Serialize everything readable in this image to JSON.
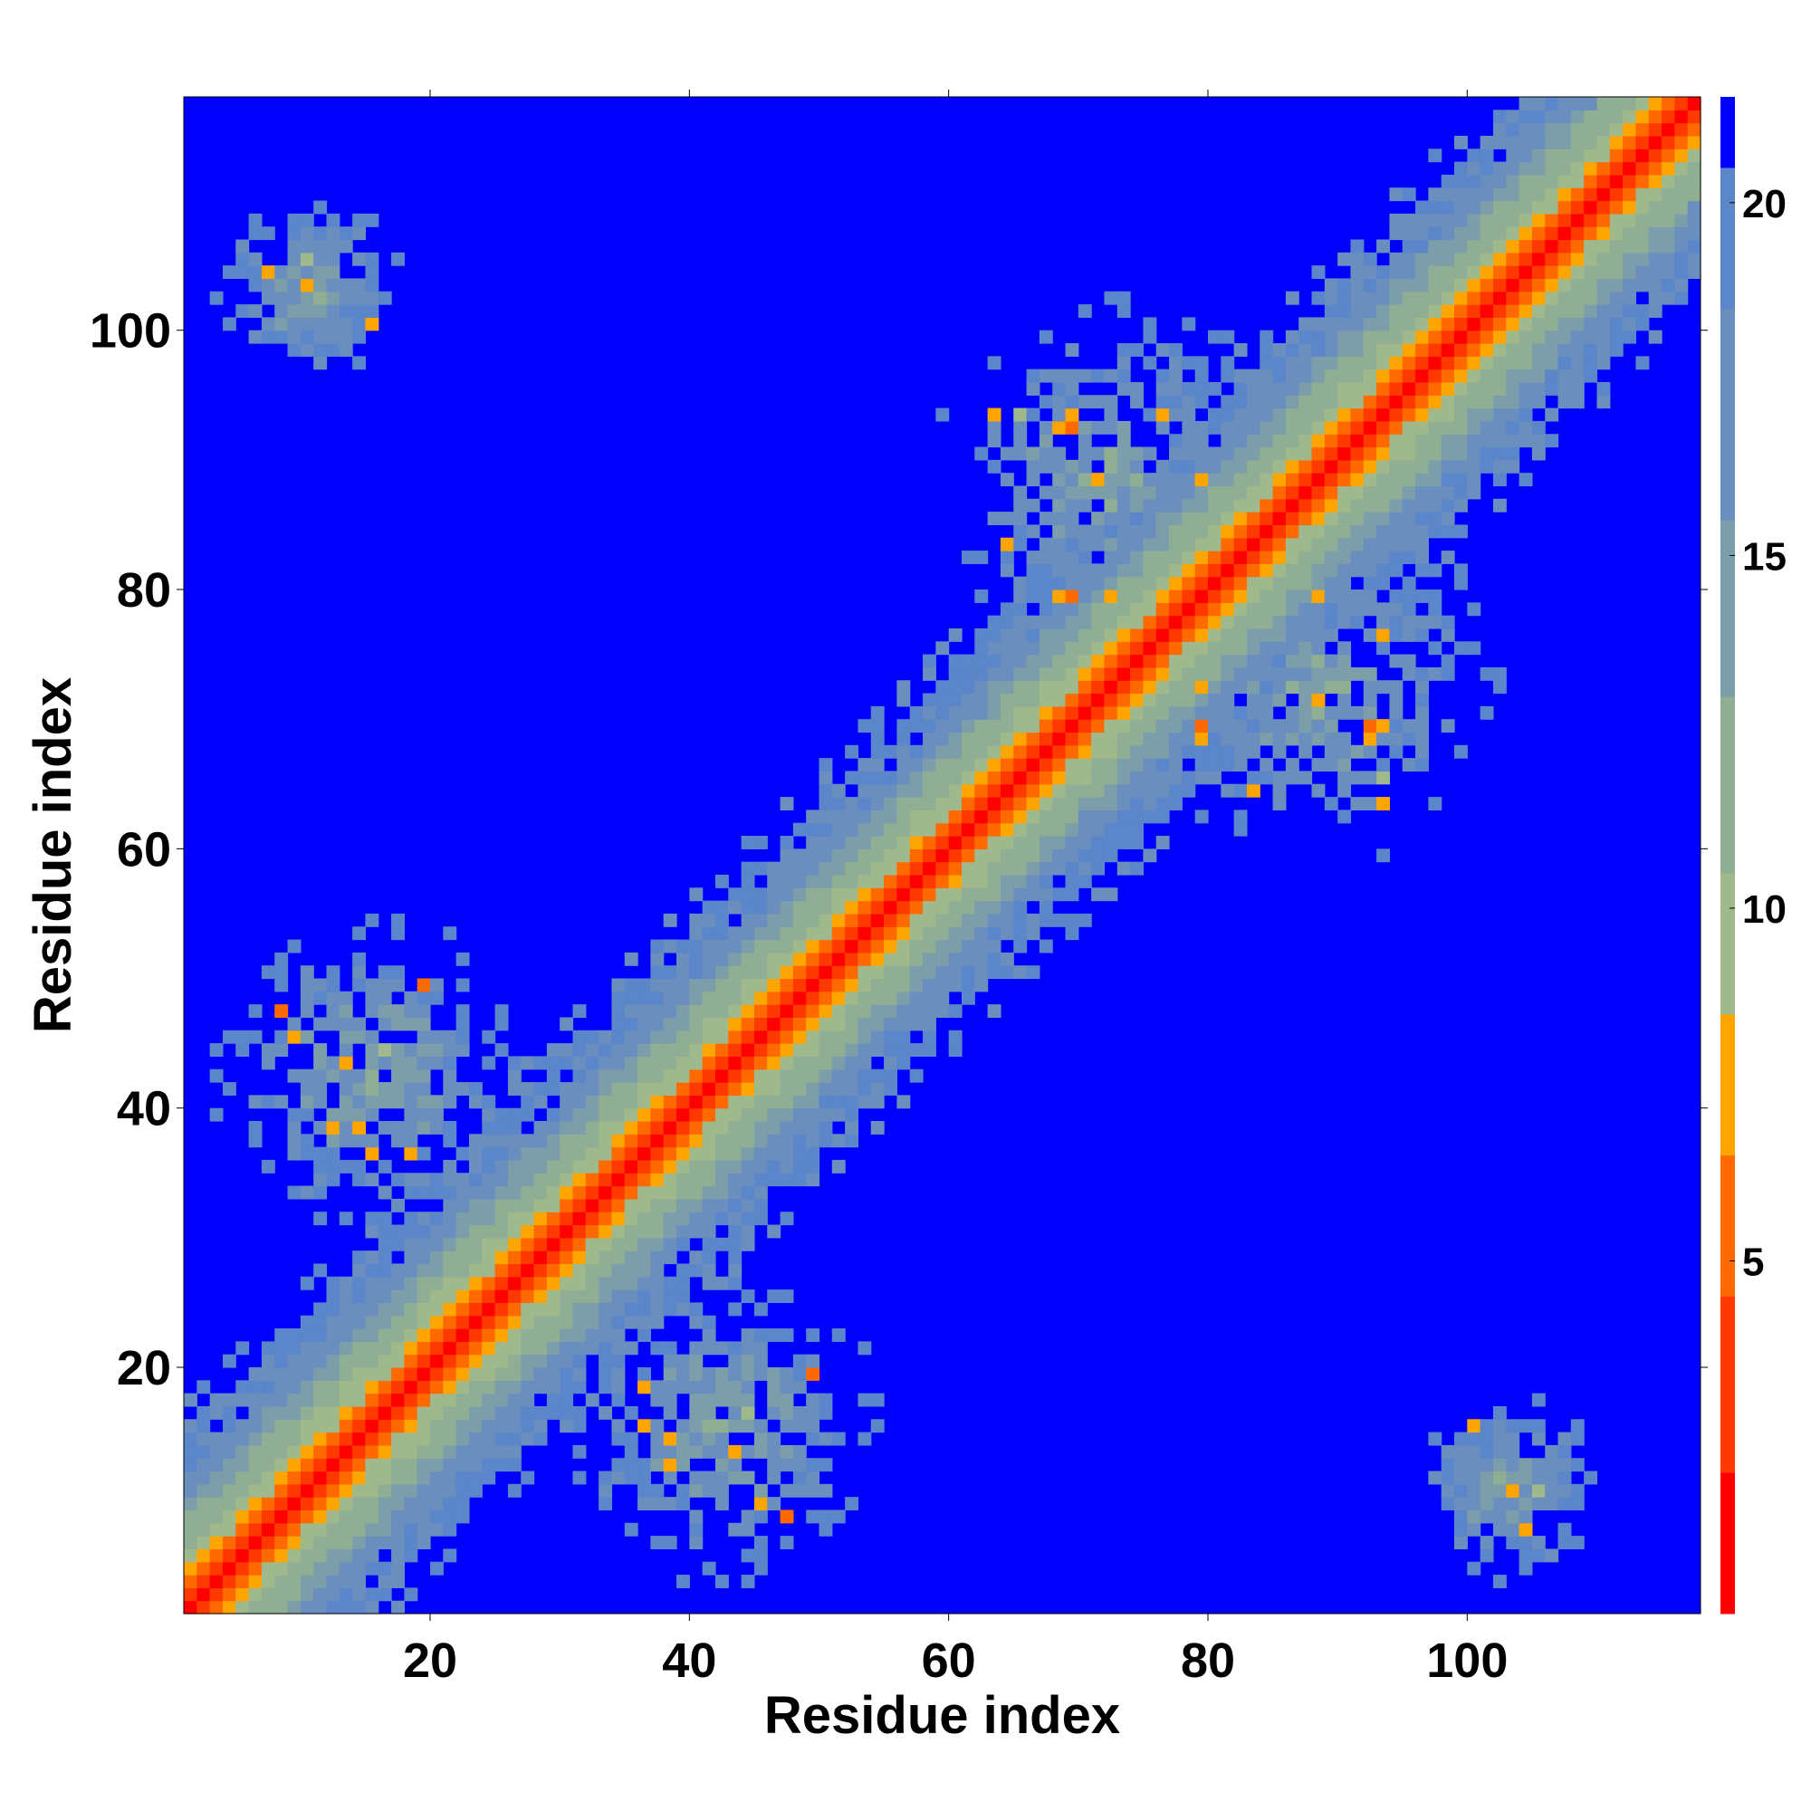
{
  "chart_data": {
    "type": "heatmap",
    "title": "",
    "xlabel": "Residue index",
    "ylabel": "Residue index",
    "xlim": [
      1,
      117
    ],
    "ylim": [
      1,
      117
    ],
    "x_ticks": [
      20,
      40,
      60,
      80,
      100
    ],
    "y_ticks": [
      20,
      40,
      60,
      80,
      100
    ],
    "x_tick_labels": [
      "20",
      "40",
      "60",
      "80",
      "100"
    ],
    "y_tick_labels": [
      "20",
      "40",
      "60",
      "80",
      "100"
    ],
    "n_residues": 117,
    "colorbar": {
      "range": [
        0,
        21.5
      ],
      "ticks": [
        5,
        10,
        15,
        20
      ],
      "tick_labels": [
        "5",
        "10",
        "15",
        "20"
      ],
      "bands": [
        {
          "from": 0,
          "to": 2,
          "color": "#ff0000"
        },
        {
          "from": 2,
          "to": 4.5,
          "color": "#ff3a00"
        },
        {
          "from": 4.5,
          "to": 6.5,
          "color": "#ff6a00"
        },
        {
          "from": 6.5,
          "to": 8.5,
          "color": "#ffa500"
        },
        {
          "from": 8.5,
          "to": 10.5,
          "color": "#9fb88c"
        },
        {
          "from": 10.5,
          "to": 13,
          "color": "#8fae94"
        },
        {
          "from": 13,
          "to": 15.5,
          "color": "#7b9eaa"
        },
        {
          "from": 15.5,
          "to": 18.5,
          "color": "#6a8ebd"
        },
        {
          "from": 18.5,
          "to": 20.5,
          "color": "#5b86c9"
        },
        {
          "from": 20.5,
          "to": 21.5,
          "color": "#0000ff"
        }
      ]
    },
    "contact_clusters": [
      {
        "center_x": 10,
        "center_y": 103,
        "spread": 6,
        "strength": 0.9
      },
      {
        "center_x": 103,
        "center_y": 10,
        "spread": 6,
        "strength": 0.9
      },
      {
        "center_x": 15,
        "center_y": 42,
        "spread": 10,
        "strength": 0.75
      },
      {
        "center_x": 40,
        "center_y": 17,
        "spread": 10,
        "strength": 0.75
      },
      {
        "center_x": 72,
        "center_y": 88,
        "spread": 11,
        "strength": 0.7
      },
      {
        "center_x": 88,
        "center_y": 72,
        "spread": 11,
        "strength": 0.7
      }
    ],
    "background_color": "#0000ff"
  }
}
